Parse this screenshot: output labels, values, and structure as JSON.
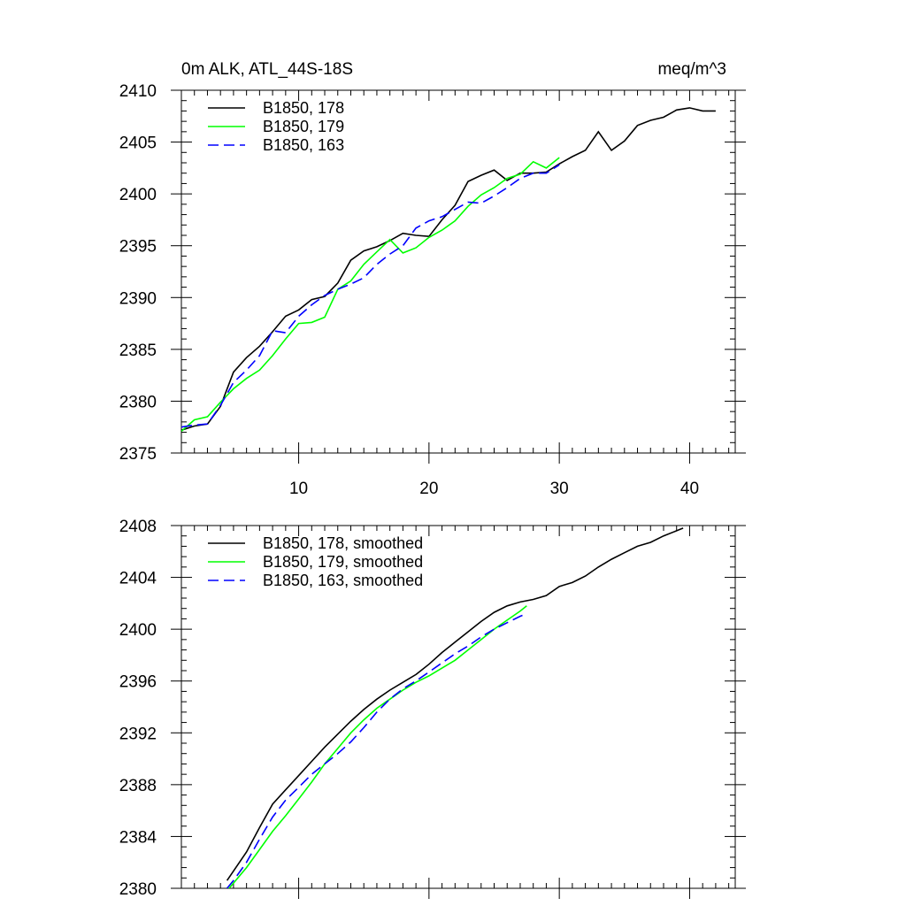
{
  "chart_data": [
    {
      "type": "line",
      "title_left": "0m ALK, ATL_44S-18S",
      "title_right": "meq/m^3",
      "xlabel": "",
      "ylabel": "",
      "xlim": [
        1,
        43.5
      ],
      "ylim": [
        2375,
        2410
      ],
      "xticks": [
        10,
        20,
        30,
        40
      ],
      "yticks": [
        2375,
        2380,
        2385,
        2390,
        2395,
        2400,
        2405,
        2410
      ],
      "x_tick_labels_shown": true,
      "legend_position": "top-left",
      "series": [
        {
          "name": "B1850, 178",
          "color": "#000000",
          "dash": "solid",
          "x": [
            1,
            2,
            3,
            4,
            5,
            6,
            7,
            8,
            9,
            10,
            11,
            12,
            13,
            14,
            15,
            16,
            17,
            18,
            19,
            20,
            21,
            22,
            23,
            24,
            25,
            26,
            27,
            28,
            29,
            30,
            31,
            32,
            33,
            34,
            35,
            36,
            37,
            38,
            39,
            40,
            41,
            42
          ],
          "y": [
            2377.2,
            2377.6,
            2377.8,
            2379.5,
            2382.8,
            2384.2,
            2385.3,
            2386.7,
            2388.2,
            2388.8,
            2389.8,
            2390.1,
            2391.4,
            2393.6,
            2394.5,
            2394.9,
            2395.5,
            2396.2,
            2396.0,
            2395.9,
            2397.5,
            2398.9,
            2401.2,
            2401.8,
            2402.3,
            2401.3,
            2402.0,
            2402.0,
            2402.1,
            2402.9,
            2403.6,
            2404.2,
            2406.0,
            2404.2,
            2405.1,
            2406.6,
            2407.1,
            2407.4,
            2408.1,
            2408.3,
            2408.0,
            2408.0
          ]
        },
        {
          "name": "B1850, 179",
          "color": "#00ff00",
          "dash": "solid",
          "x": [
            1,
            2,
            3,
            4,
            5,
            6,
            7,
            8,
            9,
            10,
            11,
            12,
            13,
            14,
            15,
            16,
            17,
            18,
            19,
            20,
            21,
            22,
            23,
            24,
            25,
            26,
            27,
            28,
            29,
            30
          ],
          "y": [
            2377.1,
            2378.2,
            2378.5,
            2379.9,
            2381.2,
            2382.2,
            2383.0,
            2384.4,
            2386.0,
            2387.5,
            2387.6,
            2388.1,
            2390.8,
            2391.6,
            2393.2,
            2394.4,
            2395.6,
            2394.3,
            2394.8,
            2395.8,
            2396.5,
            2397.4,
            2398.8,
            2399.9,
            2400.6,
            2401.5,
            2401.9,
            2403.1,
            2402.5,
            2403.5
          ]
        },
        {
          "name": "B1850, 163",
          "color": "#0000ff",
          "dash": "dashed",
          "x": [
            1,
            2,
            3,
            4,
            5,
            6,
            7,
            8,
            9,
            10,
            11,
            12,
            13,
            14,
            15,
            16,
            17,
            18,
            19,
            20,
            21,
            22,
            23,
            24,
            25,
            26,
            27,
            28,
            29,
            30
          ],
          "y": [
            2377.5,
            2377.7,
            2377.8,
            2379.6,
            2381.8,
            2383.0,
            2384.4,
            2386.8,
            2386.6,
            2388.2,
            2389.3,
            2390.2,
            2390.8,
            2391.3,
            2391.9,
            2393.2,
            2394.2,
            2395.0,
            2396.7,
            2397.4,
            2397.8,
            2398.5,
            2399.2,
            2399.1,
            2399.8,
            2400.6,
            2401.5,
            2402.0,
            2402.0,
            2402.8
          ]
        }
      ]
    },
    {
      "type": "line",
      "title_left": "",
      "title_right": "",
      "xlabel": "",
      "ylabel": "",
      "xlim": [
        1,
        43.5
      ],
      "ylim": [
        2380,
        2408
      ],
      "xticks": [
        10,
        20,
        30,
        40
      ],
      "yticks": [
        2380,
        2384,
        2388,
        2392,
        2396,
        2400,
        2404,
        2408
      ],
      "x_tick_labels_shown": false,
      "legend_position": "top-left",
      "series": [
        {
          "name": "B1850, 178, smoothed",
          "color": "#000000",
          "dash": "solid",
          "x": [
            4.5,
            6,
            7,
            8,
            9,
            10,
            11,
            12,
            13,
            14,
            15,
            16,
            17,
            18,
            19,
            20,
            21,
            22,
            23,
            24,
            25,
            26,
            27,
            28,
            29,
            30,
            31,
            32,
            33,
            34,
            35,
            36,
            37,
            38,
            39,
            39.5
          ],
          "y": [
            2380.6,
            2382.8,
            2384.7,
            2386.5,
            2387.6,
            2388.7,
            2389.8,
            2390.9,
            2391.9,
            2392.9,
            2393.8,
            2394.6,
            2395.3,
            2395.9,
            2396.5,
            2397.3,
            2398.2,
            2399.0,
            2399.8,
            2400.6,
            2401.3,
            2401.8,
            2402.1,
            2402.3,
            2402.6,
            2403.3,
            2403.6,
            2404.1,
            2404.8,
            2405.4,
            2405.9,
            2406.4,
            2406.7,
            2407.2,
            2407.6,
            2407.8
          ]
        },
        {
          "name": "B1850, 179, smoothed",
          "color": "#00ff00",
          "dash": "solid",
          "x": [
            4.5,
            5,
            6,
            7,
            8,
            9,
            10,
            11,
            12,
            13,
            14,
            15,
            16,
            17,
            18,
            19,
            20,
            21,
            22,
            23,
            24,
            25,
            26,
            27,
            27.5
          ],
          "y": [
            2379.8,
            2380.4,
            2381.6,
            2383.0,
            2384.4,
            2385.6,
            2386.9,
            2388.2,
            2389.6,
            2390.8,
            2392.0,
            2393.0,
            2393.9,
            2394.6,
            2395.3,
            2395.9,
            2396.4,
            2397.0,
            2397.6,
            2398.4,
            2399.2,
            2400.0,
            2400.7,
            2401.4,
            2401.8
          ]
        },
        {
          "name": "B1850, 163, smoothed",
          "color": "#0000ff",
          "dash": "dashed",
          "x": [
            4.5,
            5,
            6,
            7,
            8,
            9,
            10,
            11,
            12,
            13,
            14,
            15,
            16,
            17,
            18,
            19,
            20,
            21,
            22,
            23,
            24,
            25,
            26,
            27,
            27.5
          ],
          "y": [
            2380.0,
            2380.6,
            2382.0,
            2383.8,
            2385.5,
            2386.8,
            2387.8,
            2388.8,
            2389.6,
            2390.4,
            2391.3,
            2392.4,
            2393.6,
            2394.6,
            2395.4,
            2396.0,
            2396.7,
            2397.4,
            2398.1,
            2398.7,
            2399.4,
            2400.0,
            2400.5,
            2401.0,
            2401.2
          ]
        }
      ]
    }
  ]
}
